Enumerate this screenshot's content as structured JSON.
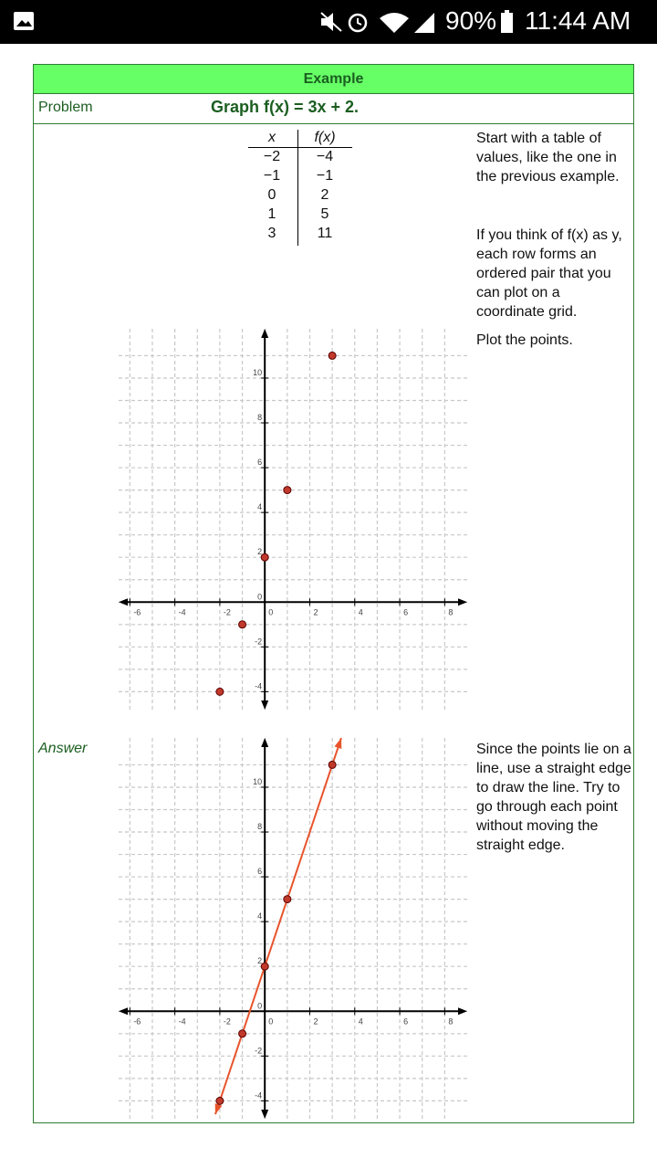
{
  "status_bar": {
    "battery": "90%",
    "time": "11:44 AM"
  },
  "example": {
    "header": "Example",
    "problem_label": "Problem",
    "problem": "Graph f(x) = 3x + 2.",
    "answer_label": "Answer",
    "value_table": {
      "header": [
        "x",
        "f(x)"
      ],
      "rows": [
        [
          "−2",
          "−4"
        ],
        [
          "−1",
          "−1"
        ],
        [
          "0",
          "2"
        ],
        [
          "1",
          "5"
        ],
        [
          "3",
          "11"
        ]
      ]
    },
    "notes": [
      "Start with a table of values, like the one in the previous example.",
      "If you think of f(x) as y, each row forms an ordered pair that you can plot on a coordinate grid.",
      "Plot the points.",
      "Since the points lie on a line, use a straight edge to draw the line. Try to go through each point without moving the straight edge."
    ]
  },
  "graphs": [
    {
      "xlim": [
        -6.5,
        9
      ],
      "ylim": [
        -4.8,
        12.2
      ],
      "xticks": [
        -6,
        -4,
        -2,
        0,
        2,
        4,
        6,
        8
      ],
      "yticks": [
        -4,
        -2,
        0,
        2,
        4,
        6,
        8,
        10
      ],
      "xminor": [
        -5,
        -3,
        -1,
        1,
        3,
        5,
        7
      ],
      "yminor": [
        -3,
        -1,
        1,
        3,
        5,
        7,
        9,
        11
      ],
      "points": {
        "x": [
          -2,
          -1,
          0,
          1,
          3
        ],
        "y": [
          -4,
          -1,
          2,
          5,
          11
        ],
        "color": "#c0392b"
      }
    },
    {
      "xlim": [
        -6.5,
        9
      ],
      "ylim": [
        -4.8,
        12.2
      ],
      "xticks": [
        -6,
        -4,
        -2,
        0,
        2,
        4,
        6,
        8
      ],
      "yticks": [
        -4,
        -2,
        0,
        2,
        4,
        6,
        8,
        10
      ],
      "xminor": [
        -5,
        -3,
        -1,
        1,
        3,
        5,
        7
      ],
      "yminor": [
        -3,
        -1,
        1,
        3,
        5,
        7,
        9,
        11
      ],
      "points": {
        "x": [
          -2,
          -1,
          0,
          1,
          3
        ],
        "y": [
          -4,
          -1,
          2,
          5,
          11
        ],
        "color": "#c0392b"
      },
      "line": {
        "x": [
          -2.2,
          3.4
        ],
        "y": [
          -4.6,
          12.2
        ],
        "color": "#e8542c"
      }
    }
  ]
}
